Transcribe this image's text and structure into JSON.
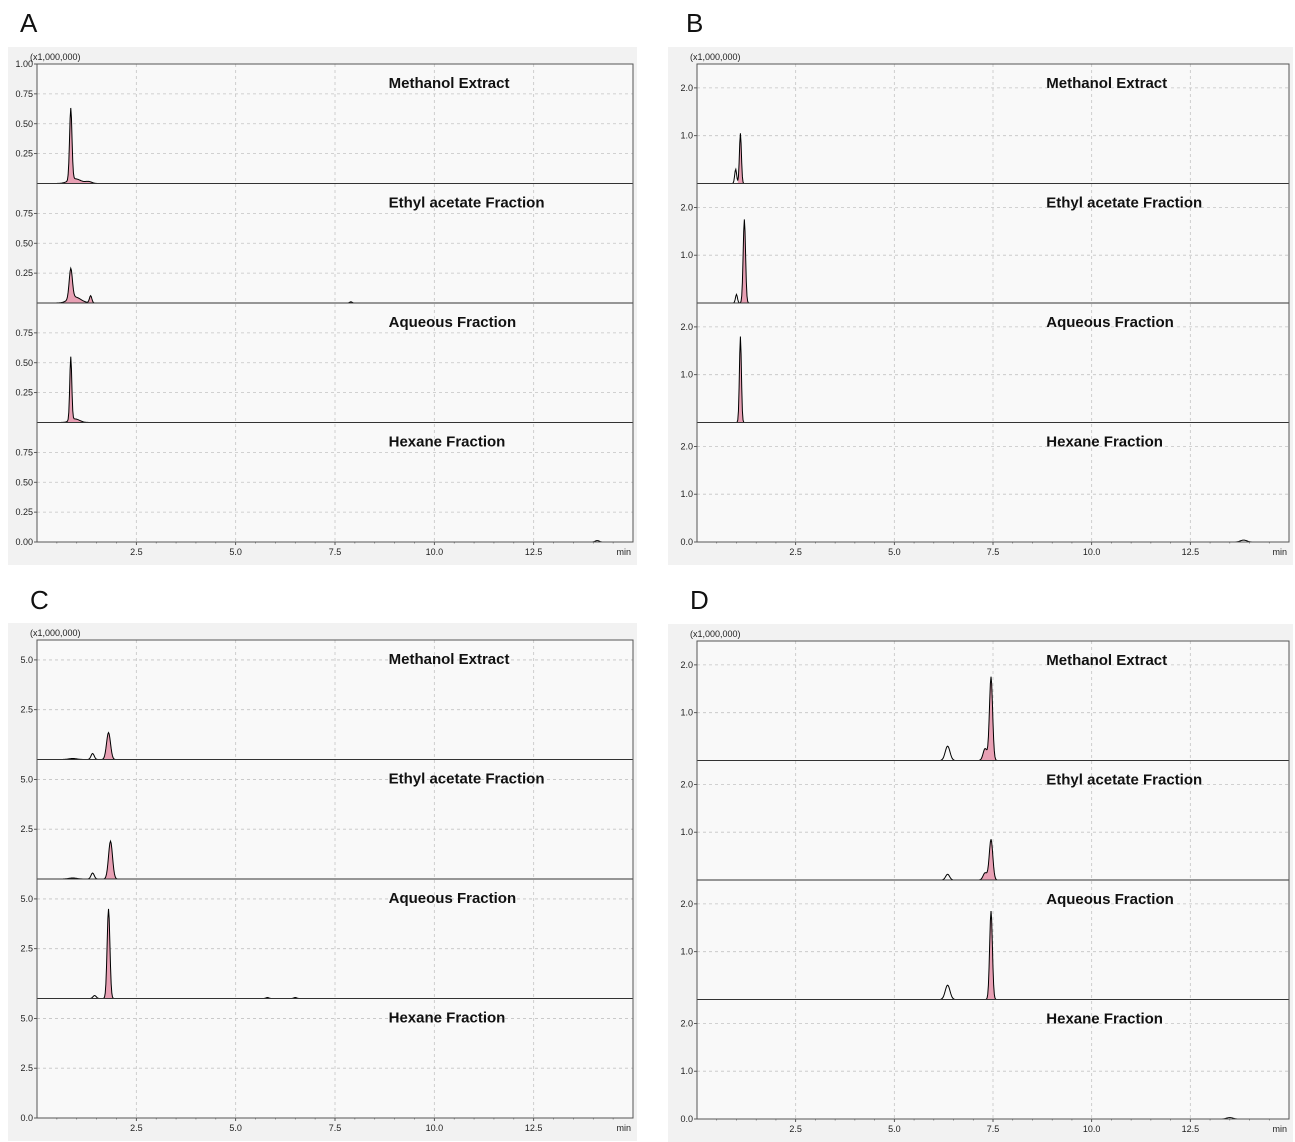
{
  "colors": {
    "frame_bg": "#f2f2f2",
    "plot_bg": "#f9f9f9",
    "grid": "#c4c4c4",
    "trace": "#000000",
    "fill": "#e8a0b4"
  },
  "chart_data": [
    {
      "panel": "A",
      "type": "line",
      "multiplier": "(x1,000,000)",
      "x_ticks": [
        "2.5",
        "5.0",
        "7.5",
        "10.0",
        "12.5"
      ],
      "x_unit": "min",
      "x_range": [
        0.0,
        15.0
      ],
      "y_max": 1.0,
      "y_ticks": [
        "0.25",
        "0.50",
        "0.75"
      ],
      "first_y_ticks": [
        "0.25",
        "0.50",
        "0.75",
        "1.00"
      ],
      "last_y_ticks": [
        "0.00",
        "0.25",
        "0.50",
        "0.75"
      ],
      "traces": [
        {
          "label": "Methanol Extract",
          "peaks": [
            {
              "t": 0.85,
              "h": 0.6,
              "w": 0.03,
              "fill": true
            },
            {
              "t": 0.95,
              "h": 0.04,
              "w": 0.15,
              "fill": true
            },
            {
              "t": 1.3,
              "h": 0.015,
              "w": 0.08,
              "fill": false
            }
          ]
        },
        {
          "label": "Ethyl acetate Fraction",
          "peaks": [
            {
              "t": 0.85,
              "h": 0.25,
              "w": 0.04,
              "fill": true
            },
            {
              "t": 0.95,
              "h": 0.05,
              "w": 0.15,
              "fill": true
            },
            {
              "t": 1.35,
              "h": 0.06,
              "w": 0.03,
              "fill": false
            },
            {
              "t": 7.9,
              "h": 0.01,
              "w": 0.03,
              "fill": false
            }
          ]
        },
        {
          "label": "Aqueous Fraction",
          "peaks": [
            {
              "t": 0.85,
              "h": 0.53,
              "w": 0.025,
              "fill": true
            },
            {
              "t": 0.95,
              "h": 0.03,
              "w": 0.12,
              "fill": true
            }
          ]
        },
        {
          "label": "Hexane Fraction",
          "peaks": [
            {
              "t": 14.1,
              "h": 0.012,
              "w": 0.05,
              "fill": false
            }
          ]
        }
      ]
    },
    {
      "panel": "B",
      "type": "line",
      "multiplier": "(x1,000,000)",
      "x_ticks": [
        "2.5",
        "5.0",
        "7.5",
        "10.0",
        "12.5"
      ],
      "x_unit": "min",
      "x_range": [
        0.0,
        15.0
      ],
      "y_max": 2.5,
      "y_ticks": [
        "1.0",
        "2.0"
      ],
      "first_y_ticks": [
        "1.0",
        "2.0"
      ],
      "last_y_ticks": [
        "0.0",
        "1.0",
        "2.0"
      ],
      "traces": [
        {
          "label": "Methanol Extract",
          "peaks": [
            {
              "t": 1.1,
              "h": 1.05,
              "w": 0.025,
              "fill": true
            },
            {
              "t": 0.98,
              "h": 0.3,
              "w": 0.025,
              "fill": false
            }
          ]
        },
        {
          "label": "Ethyl acetate Fraction",
          "peaks": [
            {
              "t": 1.2,
              "h": 1.75,
              "w": 0.03,
              "fill": true
            },
            {
              "t": 1.0,
              "h": 0.18,
              "w": 0.025,
              "fill": false
            }
          ]
        },
        {
          "label": "Aqueous Fraction",
          "peaks": [
            {
              "t": 1.1,
              "h": 1.8,
              "w": 0.025,
              "fill": true
            }
          ]
        },
        {
          "label": "Hexane Fraction",
          "peaks": [
            {
              "t": 13.85,
              "h": 0.04,
              "w": 0.08,
              "fill": false
            }
          ]
        }
      ]
    },
    {
      "panel": "C",
      "type": "line",
      "multiplier": "(x1,000,000)",
      "x_ticks": [
        "2.5",
        "5.0",
        "7.5",
        "10.0",
        "12.5"
      ],
      "x_unit": "min",
      "x_range": [
        0.0,
        15.0
      ],
      "y_max": 6.0,
      "y_ticks": [
        "2.5",
        "5.0"
      ],
      "first_y_ticks": [
        "2.5",
        "5.0"
      ],
      "last_y_ticks": [
        "0.0",
        "2.5",
        "5.0"
      ],
      "traces": [
        {
          "label": "Methanol Extract",
          "peaks": [
            {
              "t": 1.8,
              "h": 1.35,
              "w": 0.05,
              "fill": true
            },
            {
              "t": 1.4,
              "h": 0.3,
              "w": 0.04,
              "fill": false
            },
            {
              "t": 0.9,
              "h": 0.05,
              "w": 0.1,
              "fill": false
            }
          ]
        },
        {
          "label": "Ethyl acetate Fraction",
          "peaks": [
            {
              "t": 1.85,
              "h": 1.9,
              "w": 0.05,
              "fill": true
            },
            {
              "t": 1.4,
              "h": 0.3,
              "w": 0.04,
              "fill": false
            },
            {
              "t": 0.9,
              "h": 0.05,
              "w": 0.1,
              "fill": false
            }
          ]
        },
        {
          "label": "Aqueous Fraction",
          "peaks": [
            {
              "t": 1.8,
              "h": 4.5,
              "w": 0.035,
              "fill": true
            },
            {
              "t": 1.45,
              "h": 0.15,
              "w": 0.04,
              "fill": false
            },
            {
              "t": 5.8,
              "h": 0.05,
              "w": 0.04,
              "fill": false
            },
            {
              "t": 6.5,
              "h": 0.05,
              "w": 0.04,
              "fill": false
            }
          ]
        },
        {
          "label": "Hexane Fraction",
          "peaks": []
        }
      ]
    },
    {
      "panel": "D",
      "type": "line",
      "multiplier": "(x1,000,000)",
      "x_ticks": [
        "2.5",
        "5.0",
        "7.5",
        "10.0",
        "12.5"
      ],
      "x_unit": "min",
      "x_range": [
        0.0,
        15.0
      ],
      "y_max": 2.5,
      "y_ticks": [
        "1.0",
        "2.0"
      ],
      "first_y_ticks": [
        "1.0",
        "2.0"
      ],
      "last_y_ticks": [
        "0.0",
        "1.0",
        "2.0"
      ],
      "traces": [
        {
          "label": "Methanol Extract",
          "peaks": [
            {
              "t": 7.45,
              "h": 1.75,
              "w": 0.04,
              "fill": true
            },
            {
              "t": 7.3,
              "h": 0.25,
              "w": 0.05,
              "fill": true
            },
            {
              "t": 6.35,
              "h": 0.3,
              "w": 0.06,
              "fill": false
            }
          ]
        },
        {
          "label": "Ethyl acetate Fraction",
          "peaks": [
            {
              "t": 7.45,
              "h": 0.85,
              "w": 0.045,
              "fill": true
            },
            {
              "t": 7.3,
              "h": 0.15,
              "w": 0.05,
              "fill": true
            },
            {
              "t": 6.35,
              "h": 0.12,
              "w": 0.05,
              "fill": false
            }
          ]
        },
        {
          "label": "Aqueous Fraction",
          "peaks": [
            {
              "t": 7.45,
              "h": 1.85,
              "w": 0.035,
              "fill": true
            },
            {
              "t": 6.35,
              "h": 0.3,
              "w": 0.06,
              "fill": false
            }
          ]
        },
        {
          "label": "Hexane Fraction",
          "peaks": [
            {
              "t": 13.5,
              "h": 0.03,
              "w": 0.08,
              "fill": false
            }
          ]
        }
      ]
    }
  ]
}
